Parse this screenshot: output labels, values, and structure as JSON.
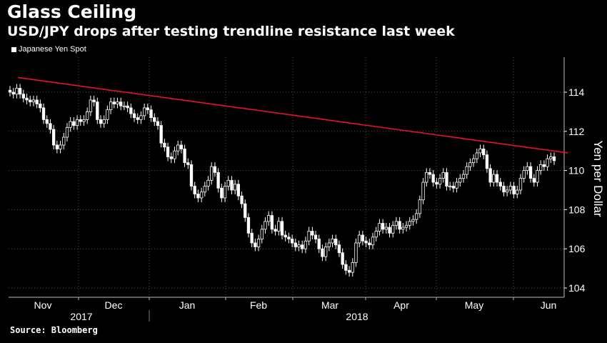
{
  "header": {
    "title": "Glass Ceiling",
    "subtitle": "USD/JPY drops after testing trendline resistance last week"
  },
  "legend": {
    "label": "Japanese Yen Spot",
    "color": "#ffffff"
  },
  "source": "Source: Bloomberg",
  "chart_data": {
    "type": "candlestick",
    "title": "Glass Ceiling",
    "ylabel": "Yen per Dollar",
    "ylim": [
      103.6,
      115.6
    ],
    "yticks": [
      104,
      106,
      108,
      110,
      112,
      114
    ],
    "ytick_labels": [
      "104",
      "106",
      "108",
      "110",
      "112",
      "114"
    ],
    "months": [
      "Nov",
      "Dec",
      "Jan",
      "Feb",
      "Mar",
      "Apr",
      "May",
      "Jun"
    ],
    "years": [
      "2017",
      "2018"
    ],
    "grid": true,
    "first_open": 114.1,
    "wick": 0.22,
    "up_color": "#000000",
    "down_color": "#ffffff",
    "trendline": {
      "color": "#e8112d",
      "start": 114.75,
      "end": 110.9
    },
    "close": [
      114.0,
      113.9,
      114.2,
      113.9,
      113.7,
      113.6,
      113.5,
      113.6,
      113.4,
      113.2,
      112.6,
      112.4,
      112.1,
      111.3,
      111.1,
      111.3,
      111.7,
      112.2,
      112.5,
      112.3,
      112.6,
      112.5,
      112.6,
      113.0,
      113.6,
      113.5,
      112.6,
      112.4,
      112.6,
      113.1,
      113.5,
      113.4,
      113.5,
      113.3,
      113.3,
      113.2,
      112.9,
      112.7,
      112.6,
      112.8,
      113.2,
      113.1,
      112.7,
      112.5,
      112.3,
      111.4,
      111.2,
      110.7,
      110.6,
      111.0,
      111.3,
      111.1,
      110.4,
      110.3,
      109.2,
      108.8,
      108.6,
      108.9,
      109.2,
      109.5,
      110.2,
      109.9,
      109.1,
      108.6,
      109.2,
      109.5,
      109.0,
      109.3,
      108.7,
      108.3,
      107.6,
      106.8,
      106.3,
      106.1,
      106.5,
      107.0,
      107.4,
      107.7,
      107.0,
      106.9,
      107.4,
      106.7,
      106.6,
      106.5,
      106.3,
      106.1,
      106.2,
      106.0,
      106.4,
      106.9,
      106.7,
      106.5,
      106.0,
      105.6,
      106.1,
      106.3,
      106.5,
      106.2,
      105.8,
      105.2,
      104.9,
      104.8,
      105.3,
      106.3,
      106.7,
      106.4,
      106.3,
      106.2,
      106.6,
      106.9,
      107.3,
      107.0,
      107.1,
      106.8,
      107.2,
      107.4,
      107.0,
      107.1,
      107.2,
      107.4,
      107.5,
      107.8,
      108.5,
      109.4,
      109.9,
      109.8,
      109.4,
      109.3,
      109.6,
      109.9,
      109.2,
      109.2,
      109.1,
      109.4,
      109.6,
      109.8,
      110.2,
      110.4,
      110.6,
      110.9,
      111.1,
      110.8,
      110.1,
      109.4,
      109.8,
      109.4,
      109.2,
      108.9,
      109.0,
      109.2,
      108.8,
      109.0,
      109.6,
      110.0,
      110.2,
      109.6,
      109.4,
      110.0,
      110.3,
      110.2,
      110.6,
      110.7,
      110.5
    ]
  }
}
